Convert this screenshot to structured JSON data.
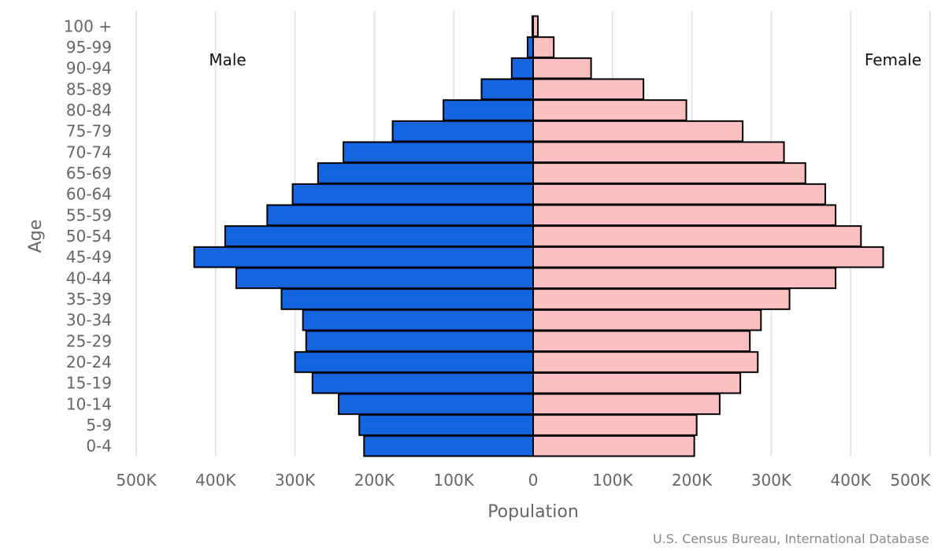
{
  "chart_data": {
    "type": "bar",
    "orientation": "horizontal",
    "layout": "population-pyramid",
    "xlabel": "Population",
    "ylabel": "Age",
    "xlim": [
      -500000,
      500000
    ],
    "x_ticks": [
      {
        "value": -500000,
        "label": "500K"
      },
      {
        "value": -400000,
        "label": "400K"
      },
      {
        "value": -300000,
        "label": "300K"
      },
      {
        "value": -200000,
        "label": "200K"
      },
      {
        "value": -100000,
        "label": "100K"
      },
      {
        "value": 0,
        "label": "0"
      },
      {
        "value": 100000,
        "label": "100K"
      },
      {
        "value": 200000,
        "label": "200K"
      },
      {
        "value": 300000,
        "label": "300K"
      },
      {
        "value": 400000,
        "label": "400K"
      },
      {
        "value": 500000,
        "label": "500K"
      }
    ],
    "categories": [
      "100 +",
      "95-99",
      "90-94",
      "85-89",
      "80-84",
      "75-79",
      "70-74",
      "65-69",
      "60-64",
      "55-59",
      "50-54",
      "45-49",
      "40-44",
      "35-39",
      "30-34",
      "25-29",
      "20-24",
      "15-19",
      "10-14",
      "5-9",
      "0-4"
    ],
    "series": [
      {
        "name": "Male",
        "color": "#1565e0",
        "values": [
          1000,
          7000,
          27000,
          65000,
          113000,
          177000,
          239000,
          271000,
          303000,
          335000,
          388000,
          427000,
          374000,
          317000,
          290000,
          286000,
          300000,
          278000,
          245000,
          219000,
          213000
        ]
      },
      {
        "name": "Female",
        "color": "#fbbfbf",
        "values": [
          6000,
          26000,
          73000,
          139000,
          193000,
          264000,
          316000,
          343000,
          368000,
          381000,
          413000,
          441000,
          381000,
          323000,
          287000,
          273000,
          283000,
          261000,
          235000,
          206000,
          203000
        ]
      }
    ],
    "grid": true,
    "source": "U.S. Census Bureau, International Database"
  }
}
